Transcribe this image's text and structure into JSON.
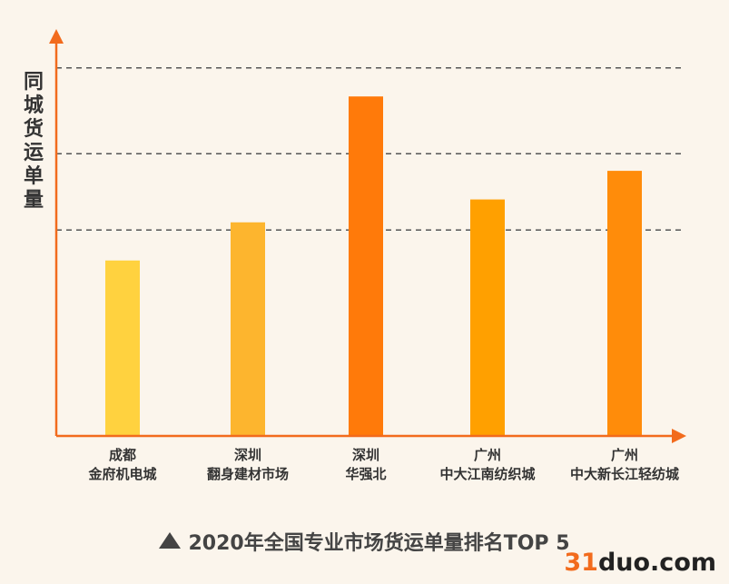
{
  "chart_data": {
    "type": "bar",
    "ylabel": "同城货运单量",
    "categories": [
      [
        "成都",
        "金府机电城"
      ],
      [
        "深圳",
        "翻身建材市场"
      ],
      [
        "深圳",
        "华强北"
      ],
      [
        "广州",
        "中大江南纺织城"
      ],
      [
        "广州",
        "中大新长江轻纺城"
      ]
    ],
    "values": [
      46,
      56,
      89,
      62,
      69.5
    ],
    "ylim": [
      0,
      100
    ],
    "gridlines": [
      54,
      74,
      96.5
    ],
    "bar_colors": [
      "#FFD23F",
      "#FDB52E",
      "#FF7A0A",
      "#FFA000",
      "#FF8C0A"
    ],
    "axis_color": "#F26B1D",
    "grid": true,
    "legend": "none"
  },
  "caption": "2020年全国专业市场货运单量排名TOP 5",
  "watermark": {
    "num": "31",
    "rest": "duo.com"
  }
}
